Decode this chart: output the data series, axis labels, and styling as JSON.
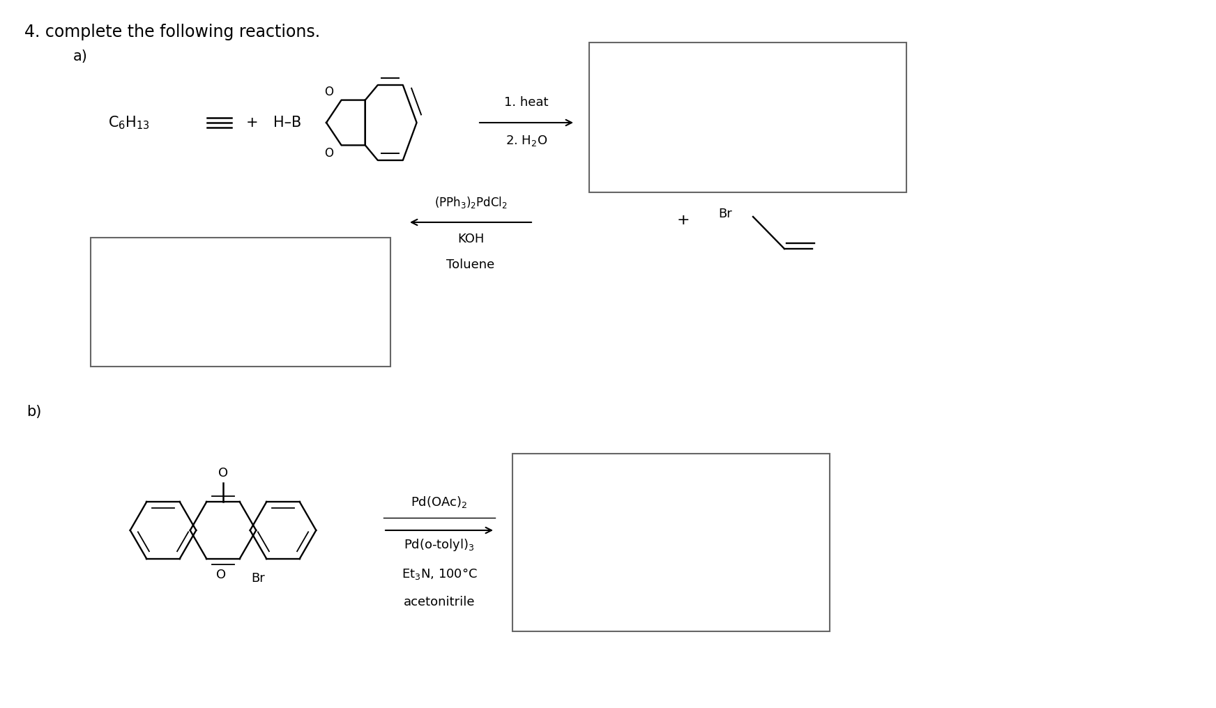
{
  "title": "4. complete the following reactions.",
  "label_a": "a)",
  "label_b": "b)",
  "bg_color": "#ffffff",
  "text_color": "#000000",
  "box_edge_color": "#666666"
}
